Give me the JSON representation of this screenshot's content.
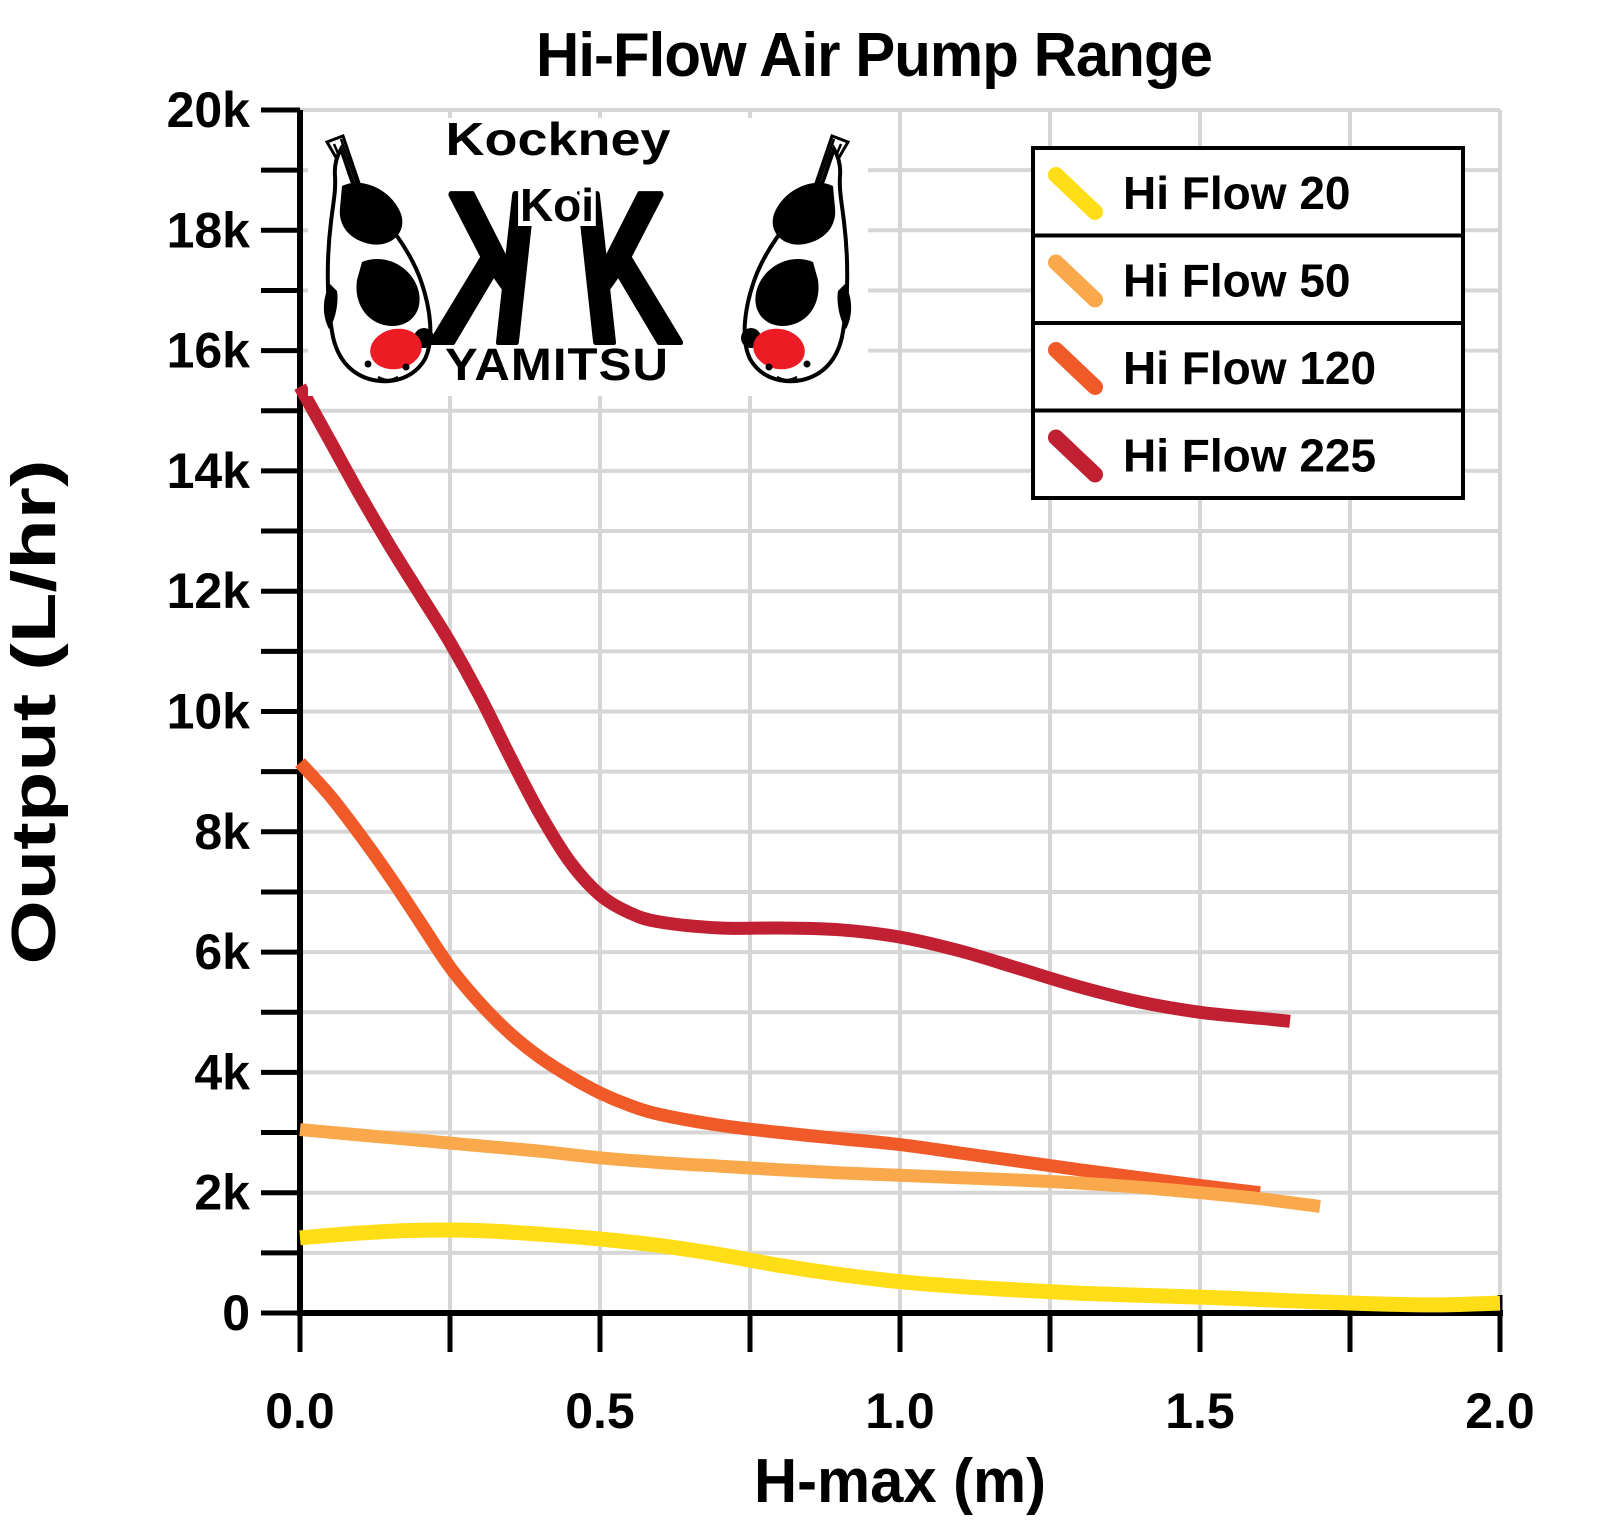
{
  "page": {
    "background": "#FFFFFF"
  },
  "colors": {
    "grid": "#D6D6D6",
    "axis": "#000000",
    "legend_border": "#000000",
    "plot_bg": "#FFFFFF"
  },
  "logo": {
    "brand_top": "Kockney",
    "brand_mid": "Koi",
    "brand_bottom": "YAMITSU",
    "monogram_letter": "K",
    "colors": {
      "yellow": "#FFDE17",
      "red": "#ED1C24",
      "black": "#000000",
      "fish_spot": "#ED1C24"
    }
  },
  "chart_data": {
    "type": "line",
    "title": "Hi-Flow Air Pump Range",
    "xlabel": "H-max (m)",
    "ylabel": "Output (L/hr)",
    "xlim": [
      0,
      2.0
    ],
    "ylim": [
      0,
      20000
    ],
    "grid": true,
    "x_minor_step": 0.25,
    "y_minor_step": 1000,
    "legend_position": "upper right",
    "x_ticks": [
      {
        "v": 0,
        "label": "0.0"
      },
      {
        "v": 0.5,
        "label": "0.5"
      },
      {
        "v": 1.0,
        "label": "1.0"
      },
      {
        "v": 1.5,
        "label": "1.5"
      },
      {
        "v": 2.0,
        "label": "2.0"
      }
    ],
    "y_ticks": [
      {
        "v": 0,
        "label": "0"
      },
      {
        "v": 2000,
        "label": "2k"
      },
      {
        "v": 4000,
        "label": "4k"
      },
      {
        "v": 6000,
        "label": "6k"
      },
      {
        "v": 8000,
        "label": "8k"
      },
      {
        "v": 10000,
        "label": "10k"
      },
      {
        "v": 12000,
        "label": "12k"
      },
      {
        "v": 14000,
        "label": "14k"
      },
      {
        "v": 16000,
        "label": "16k"
      },
      {
        "v": 18000,
        "label": "18k"
      },
      {
        "v": 20000,
        "label": "20k"
      }
    ],
    "series": [
      {
        "name": "Hi Flow 20",
        "color": "#FFDE17",
        "width": 15,
        "points": [
          [
            0,
            1250
          ],
          [
            0.1,
            1330
          ],
          [
            0.2,
            1375
          ],
          [
            0.3,
            1370
          ],
          [
            0.4,
            1310
          ],
          [
            0.5,
            1230
          ],
          [
            0.6,
            1120
          ],
          [
            0.7,
            970
          ],
          [
            0.8,
            790
          ],
          [
            0.9,
            640
          ],
          [
            1.0,
            520
          ],
          [
            1.1,
            440
          ],
          [
            1.2,
            380
          ],
          [
            1.3,
            330
          ],
          [
            1.4,
            295
          ],
          [
            1.5,
            265
          ],
          [
            1.6,
            225
          ],
          [
            1.7,
            185
          ],
          [
            1.8,
            150
          ],
          [
            1.9,
            135
          ],
          [
            2.0,
            165
          ]
        ]
      },
      {
        "name": "Hi Flow 50",
        "color": "#F9A94B",
        "width": 13,
        "points": [
          [
            0,
            3050
          ],
          [
            0.1,
            2960
          ],
          [
            0.2,
            2870
          ],
          [
            0.3,
            2780
          ],
          [
            0.4,
            2690
          ],
          [
            0.5,
            2580
          ],
          [
            0.6,
            2500
          ],
          [
            0.7,
            2440
          ],
          [
            0.8,
            2380
          ],
          [
            0.9,
            2330
          ],
          [
            1.0,
            2290
          ],
          [
            1.1,
            2250
          ],
          [
            1.2,
            2210
          ],
          [
            1.3,
            2160
          ],
          [
            1.4,
            2090
          ],
          [
            1.5,
            2000
          ],
          [
            1.6,
            1900
          ],
          [
            1.7,
            1770
          ]
        ]
      },
      {
        "name": "Hi Flow 120",
        "color": "#F05A28",
        "width": 13,
        "points": [
          [
            0,
            9150
          ],
          [
            0.05,
            8600
          ],
          [
            0.1,
            7950
          ],
          [
            0.15,
            7250
          ],
          [
            0.2,
            6500
          ],
          [
            0.25,
            5750
          ],
          [
            0.3,
            5150
          ],
          [
            0.35,
            4650
          ],
          [
            0.4,
            4250
          ],
          [
            0.45,
            3930
          ],
          [
            0.5,
            3660
          ],
          [
            0.55,
            3450
          ],
          [
            0.6,
            3300
          ],
          [
            0.7,
            3120
          ],
          [
            0.8,
            3000
          ],
          [
            0.9,
            2900
          ],
          [
            1.0,
            2800
          ],
          [
            1.1,
            2660
          ],
          [
            1.2,
            2520
          ],
          [
            1.3,
            2380
          ],
          [
            1.4,
            2250
          ],
          [
            1.5,
            2120
          ],
          [
            1.6,
            2000
          ]
        ]
      },
      {
        "name": "Hi Flow 225",
        "color": "#C02032",
        "width": 13,
        "points": [
          [
            0,
            15400
          ],
          [
            0.05,
            14500
          ],
          [
            0.1,
            13600
          ],
          [
            0.15,
            12750
          ],
          [
            0.2,
            11950
          ],
          [
            0.25,
            11150
          ],
          [
            0.3,
            10250
          ],
          [
            0.35,
            9250
          ],
          [
            0.4,
            8300
          ],
          [
            0.45,
            7500
          ],
          [
            0.5,
            6950
          ],
          [
            0.55,
            6650
          ],
          [
            0.6,
            6500
          ],
          [
            0.7,
            6400
          ],
          [
            0.8,
            6400
          ],
          [
            0.9,
            6370
          ],
          [
            1.0,
            6250
          ],
          [
            1.1,
            6020
          ],
          [
            1.2,
            5720
          ],
          [
            1.3,
            5420
          ],
          [
            1.4,
            5170
          ],
          [
            1.5,
            5000
          ],
          [
            1.6,
            4900
          ],
          [
            1.65,
            4850
          ]
        ]
      }
    ]
  }
}
